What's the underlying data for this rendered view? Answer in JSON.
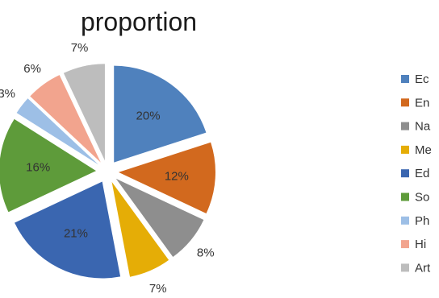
{
  "chart_data": {
    "type": "pie",
    "title": "proportion",
    "exploded": true,
    "legend_position": "right",
    "slices": [
      {
        "label": "Ec",
        "value": 20,
        "value_label": "20%",
        "color": "#4f81bd"
      },
      {
        "label": "En",
        "value": 12,
        "value_label": "12%",
        "color": "#d2691e"
      },
      {
        "label": "Na",
        "value": 8,
        "value_label": "8%",
        "color": "#8e8e8e"
      },
      {
        "label": "Me",
        "value": 7,
        "value_label": "7%",
        "color": "#e5ad06"
      },
      {
        "label": "Ed",
        "value": 21,
        "value_label": "21%",
        "color": "#3a66b0"
      },
      {
        "label": "So",
        "value": 16,
        "value_label": "16%",
        "color": "#5e9b3a"
      },
      {
        "label": "Ph",
        "value": 3,
        "value_label": "3%",
        "color": "#9dbfe6"
      },
      {
        "label": "Hi",
        "value": 6,
        "value_label": "6%",
        "color": "#f2a48e"
      },
      {
        "label": "Art",
        "value": 7,
        "value_label": "7%",
        "color": "#bdbdbd"
      }
    ]
  }
}
